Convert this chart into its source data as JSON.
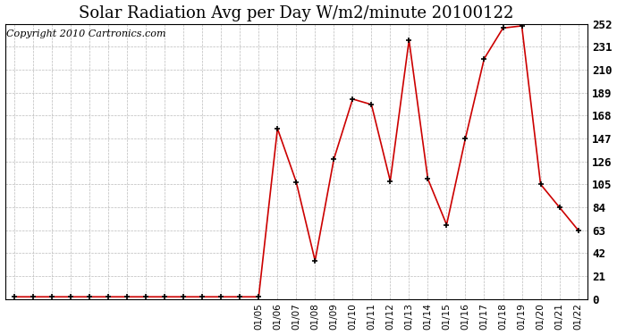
{
  "title": "Solar Radiation Avg per Day W/m2/minute 20100122",
  "copyright": "Copyright 2010 Cartronics.com",
  "x_labels_all": [
    "",
    "",
    "",
    "",
    "",
    "",
    "",
    "",
    "",
    "",
    "",
    "",
    "",
    "01/05",
    "01/06",
    "01/07",
    "01/08",
    "01/09",
    "01/10",
    "01/11",
    "01/12",
    "01/13",
    "01/14",
    "01/15",
    "01/16",
    "01/17",
    "01/18",
    "01/19",
    "01/20",
    "01/21",
    "01/22"
  ],
  "y_values": [
    2.0,
    2.0,
    2.0,
    2.0,
    2.0,
    2.0,
    2.0,
    2.0,
    2.0,
    2.0,
    2.0,
    2.0,
    2.0,
    2.0,
    156.0,
    107.0,
    35.0,
    128.0,
    183.0,
    178.0,
    108.0,
    237.0,
    110.0,
    68.0,
    147.0,
    220.0,
    248.0,
    250.0,
    105.0,
    84.0,
    63.0
  ],
  "ylim": [
    0.0,
    252.0
  ],
  "yticks": [
    0.0,
    21.0,
    42.0,
    63.0,
    84.0,
    105.0,
    126.0,
    147.0,
    168.0,
    189.0,
    210.0,
    231.0,
    252.0
  ],
  "line_color": "#cc0000",
  "background_color": "#ffffff",
  "grid_color": "#bbbbbb",
  "title_fontsize": 13,
  "copyright_fontsize": 8
}
